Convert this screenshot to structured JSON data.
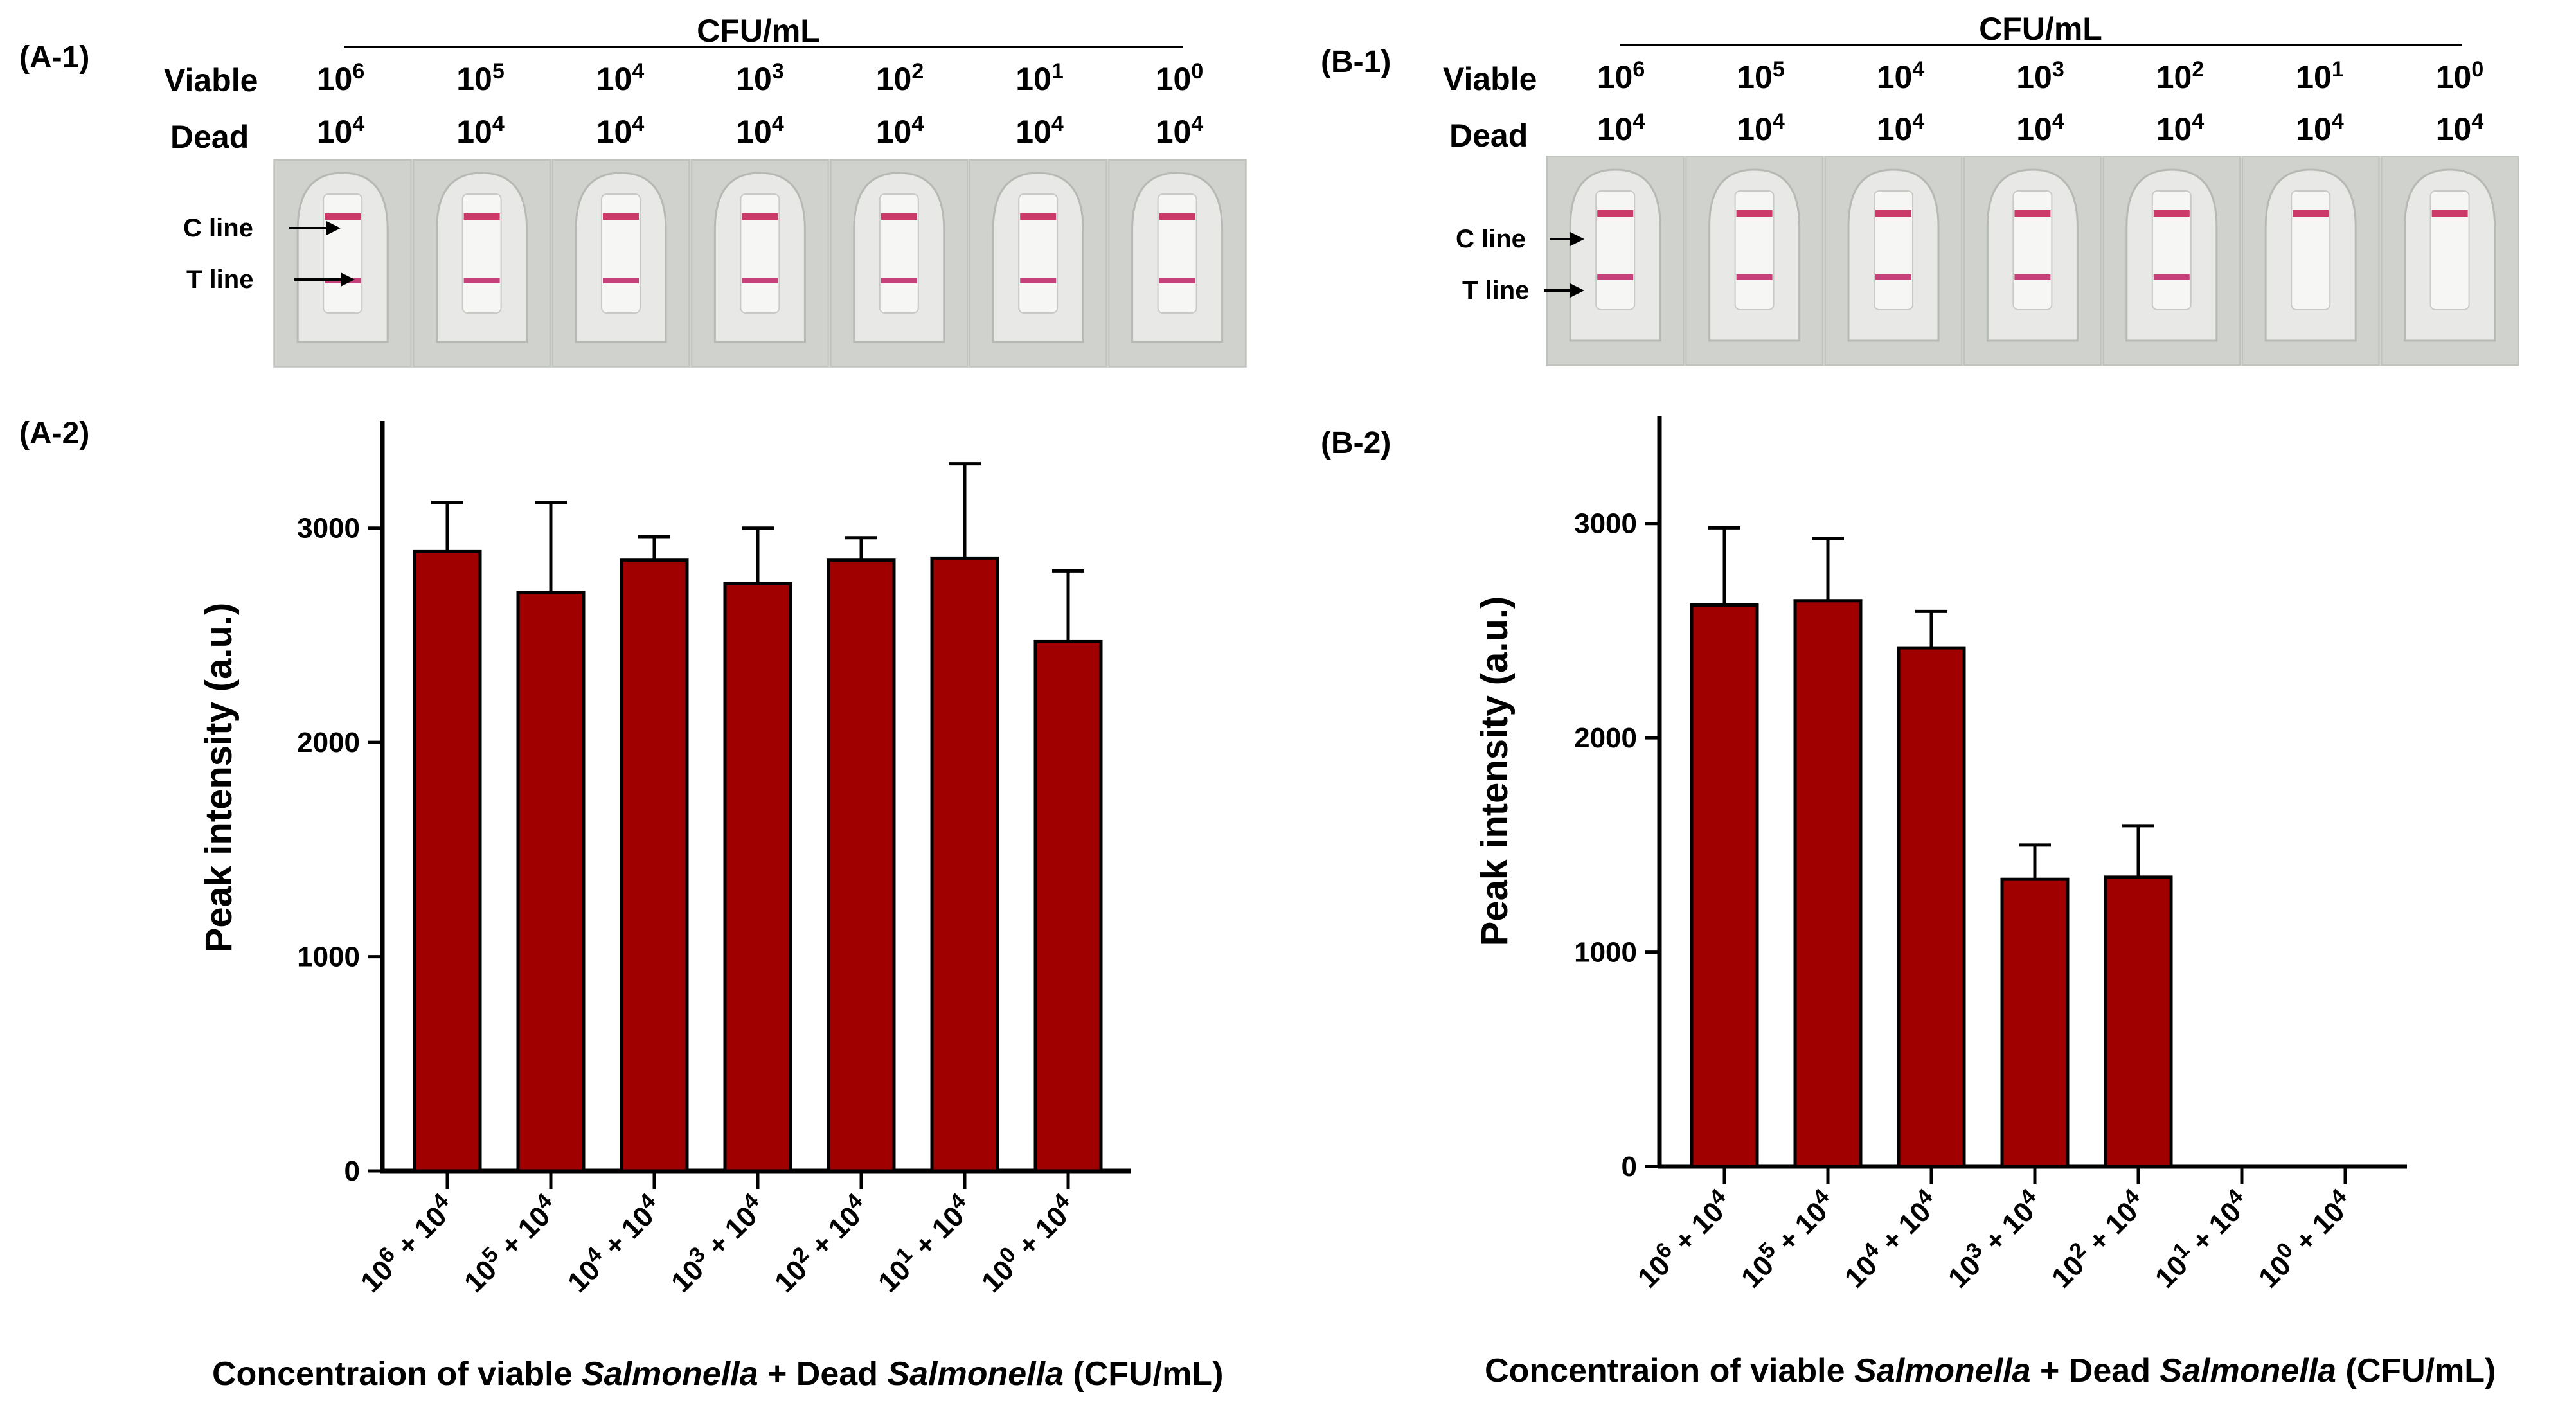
{
  "panels": [
    {
      "id": "A",
      "strip_label": "(A-1)",
      "chart_label": "(A-2)",
      "header": "CFU/mL",
      "row_labels": {
        "viable": "Viable",
        "dead": "Dead"
      },
      "strip_annotations": {
        "c_line": "C line",
        "t_line": "T line"
      },
      "viable_exponents": [
        "6",
        "5",
        "4",
        "3",
        "2",
        "1",
        "0"
      ],
      "dead_exponents": [
        "4",
        "4",
        "4",
        "4",
        "4",
        "4",
        "4"
      ],
      "number_base": "10",
      "t_line_visible": [
        true,
        true,
        true,
        true,
        true,
        true,
        true
      ]
    },
    {
      "id": "B",
      "strip_label": "(B-1)",
      "chart_label": "(B-2)",
      "header": "CFU/mL",
      "row_labels": {
        "viable": "Viable",
        "dead": "Dead"
      },
      "strip_annotations": {
        "c_line": "C line",
        "t_line": "T line"
      },
      "viable_exponents": [
        "6",
        "5",
        "4",
        "3",
        "2",
        "1",
        "0"
      ],
      "dead_exponents": [
        "4",
        "4",
        "4",
        "4",
        "4",
        "4",
        "4"
      ],
      "number_base": "10",
      "t_line_visible": [
        true,
        true,
        true,
        true,
        true,
        false,
        false
      ]
    }
  ],
  "colors": {
    "bar": "#a00000",
    "test_line": "#c6407a",
    "control_line": "#cc3a6a"
  },
  "chart_data": [
    {
      "type": "bar",
      "title": "(A-2)",
      "categories": [
        "10^6 + 10^4",
        "10^5 + 10^4",
        "10^4 + 10^4",
        "10^3 + 10^4",
        "10^2 + 10^4",
        "10^1 + 10^4",
        "10^0 + 10^4"
      ],
      "values": [
        2890,
        2700,
        2850,
        2740,
        2850,
        2860,
        2470
      ],
      "errors": [
        230,
        420,
        110,
        260,
        105,
        440,
        330
      ],
      "ylim": [
        0,
        3500
      ],
      "yticks": [
        0,
        1000,
        2000,
        3000
      ],
      "ylabel": "Peak intensity  (a.u.)",
      "xlabel": "Concentraion of viable Salmonella + Dead Salmonella (CFU/mL)",
      "xlabel_parts": [
        "Concentraion of viable ",
        "Salmonella",
        " + Dead ",
        "Salmonella",
        " (CFU/mL)"
      ]
    },
    {
      "type": "bar",
      "title": "(B-2)",
      "categories": [
        "10^6 + 10^4",
        "10^5 + 10^4",
        "10^4 + 10^4",
        "10^3 + 10^4",
        "10^2 + 10^4",
        "10^1 + 10^4",
        "10^0 + 10^4"
      ],
      "values": [
        2620,
        2640,
        2420,
        1340,
        1350,
        0,
        0
      ],
      "errors": [
        360,
        290,
        170,
        160,
        240,
        0,
        0
      ],
      "ylim": [
        0,
        3500
      ],
      "yticks": [
        0,
        1000,
        2000,
        3000
      ],
      "ylabel": "Peak intensity  (a.u.)",
      "xlabel": "Concentraion of viable Salmonella + Dead Salmonella (CFU/mL)",
      "xlabel_parts": [
        "Concentraion of viable ",
        "Salmonella",
        " + Dead ",
        "Salmonella",
        " (CFU/mL)"
      ]
    }
  ]
}
